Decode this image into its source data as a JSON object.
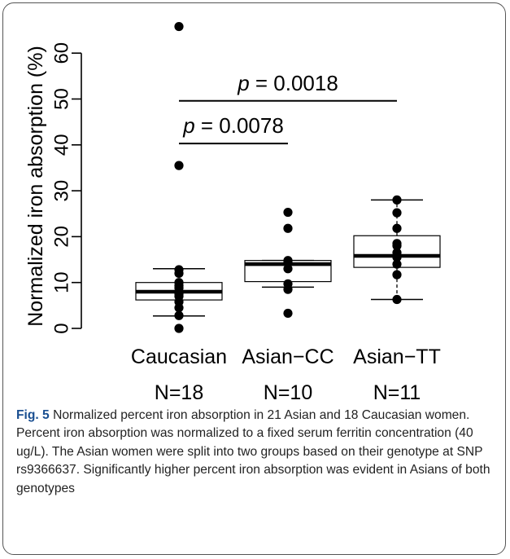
{
  "chart_data": {
    "type": "boxplot",
    "ylabel": "Normalized iron absorption (%)",
    "ylim": [
      0,
      65
    ],
    "yticks": [
      0,
      10,
      20,
      30,
      40,
      50,
      60
    ],
    "grid": false,
    "categories": [
      "Caucasian",
      "Asian−CC",
      "Asian−TT"
    ],
    "sample_sizes": [
      "N=18",
      "N=10",
      "N=11"
    ],
    "boxes": [
      {
        "whisker_low": 2.7,
        "q1": 6.2,
        "median": 8.0,
        "q3": 10.0,
        "whisker_high": 13.0
      },
      {
        "whisker_low": 9.0,
        "q1": 10.2,
        "median": 14.0,
        "q3": 14.8,
        "whisker_high": 14.8
      },
      {
        "whisker_low": 6.3,
        "q1": 13.3,
        "median": 15.8,
        "q3": 20.2,
        "whisker_high": 28.0
      }
    ],
    "points": [
      [
        0.0,
        2.8,
        4.5,
        5.8,
        7.0,
        7.5,
        8.0,
        8.8,
        9.3,
        10.0,
        12.0,
        12.8,
        35.5,
        65.8
      ],
      [
        3.3,
        8.5,
        9.7,
        13.0,
        14.5,
        14.8,
        21.8,
        25.3
      ],
      [
        6.3,
        11.7,
        14.0,
        15.5,
        16.5,
        18.0,
        18.5,
        21.8,
        25.2,
        28.0
      ]
    ],
    "annotations": [
      {
        "p_symbol": "p",
        "text": " = 0.0078",
        "from": 0,
        "to": 1,
        "y": 40.3
      },
      {
        "p_symbol": "p",
        "text": " = 0.0018",
        "from": 0,
        "to": 2,
        "y": 49.6
      }
    ]
  },
  "caption": {
    "label": "Fig. 5",
    "text": " Normalized percent iron absorption in 21 Asian and 18 Caucasian women. Percent iron absorption was normalized to a fixed serum ferritin concentration (40 ug/L). The Asian women were split into two groups based on their genotype at SNP rs9366637. Significantly higher percent iron absorption was evident in Asians of both genotypes"
  }
}
